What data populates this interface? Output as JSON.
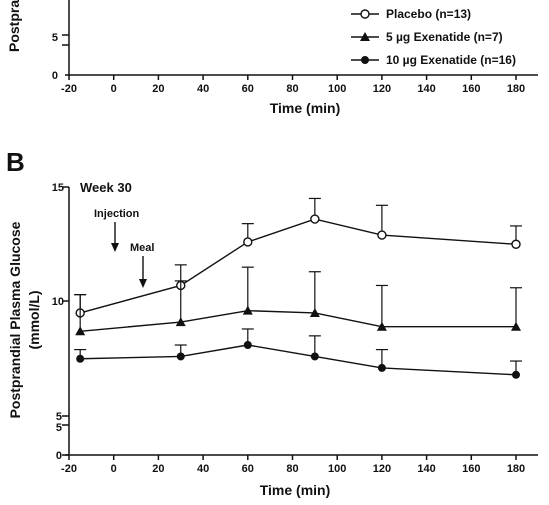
{
  "chart_data": [
    {
      "panel": "",
      "type": "line",
      "xlabel": "Time (min)",
      "ylabel": "Postprandial Plasma Glucose (mmol/L)",
      "ylabel_visible": "Postpra",
      "xlim": [
        -20,
        180
      ],
      "xticks": [
        -20,
        0,
        20,
        40,
        60,
        80,
        100,
        120,
        140,
        160,
        180
      ],
      "x_tick_labels": [
        "-20",
        "0",
        "20",
        "40",
        "60",
        "80",
        "100",
        "120",
        "140",
        "160",
        "180"
      ],
      "ylim": [
        0,
        15
      ],
      "yticks_visible": [
        "5",
        "0"
      ],
      "axis_break": "5",
      "legend": [
        {
          "label": "Placebo  (n=13)",
          "marker": "open-circle"
        },
        {
          "label": "5 µg Exenatide (n=7)",
          "marker": "filled-triangle"
        },
        {
          "label": "10 µg Exenatide (n=16)",
          "marker": "filled-circle"
        }
      ],
      "legend_placement": "bottom-right",
      "grid": false
    },
    {
      "panel": "B",
      "subtitle": "Week 30",
      "type": "line",
      "xlabel": "Time (min)",
      "ylabel_line1": "Postprandial Plasma Glucose",
      "ylabel_line2": "(mmol/L)",
      "xlim": [
        -20,
        180
      ],
      "xticks": [
        -20,
        0,
        20,
        40,
        60,
        80,
        100,
        120,
        140,
        160,
        180
      ],
      "x_tick_labels": [
        "-20",
        "0",
        "20",
        "40",
        "60",
        "80",
        "100",
        "120",
        "140",
        "160",
        "180"
      ],
      "ylim": [
        0,
        15
      ],
      "y_tick_labels": [
        "15",
        "10",
        "5",
        "5",
        "0"
      ],
      "axis_break": "5",
      "grid": false,
      "annotations": [
        {
          "text": "Injection",
          "x": 0
        },
        {
          "text": "Meal",
          "x": 13
        }
      ],
      "x": [
        -15,
        30,
        60,
        90,
        120,
        180
      ],
      "series": [
        {
          "name": "Placebo  (n=13)",
          "marker": "open-circle",
          "values": [
            9.5,
            10.7,
            12.6,
            13.6,
            12.9,
            12.5
          ],
          "error_plus": [
            0.8,
            0.9,
            0.8,
            0.9,
            1.3,
            0.8
          ]
        },
        {
          "name": "5 µg Exenatide (n=7)",
          "marker": "filled-triangle",
          "values": [
            8.7,
            9.1,
            9.6,
            9.5,
            8.9,
            8.9
          ],
          "error_plus": [
            1.6,
            1.8,
            1.9,
            1.8,
            1.8,
            1.7
          ]
        },
        {
          "name": "10 µg Exenatide (n=16)",
          "marker": "filled-circle",
          "values": [
            7.5,
            7.6,
            8.1,
            7.6,
            7.1,
            6.8
          ],
          "error_plus": [
            0.4,
            0.5,
            0.7,
            0.9,
            0.8,
            0.6
          ]
        }
      ]
    }
  ]
}
